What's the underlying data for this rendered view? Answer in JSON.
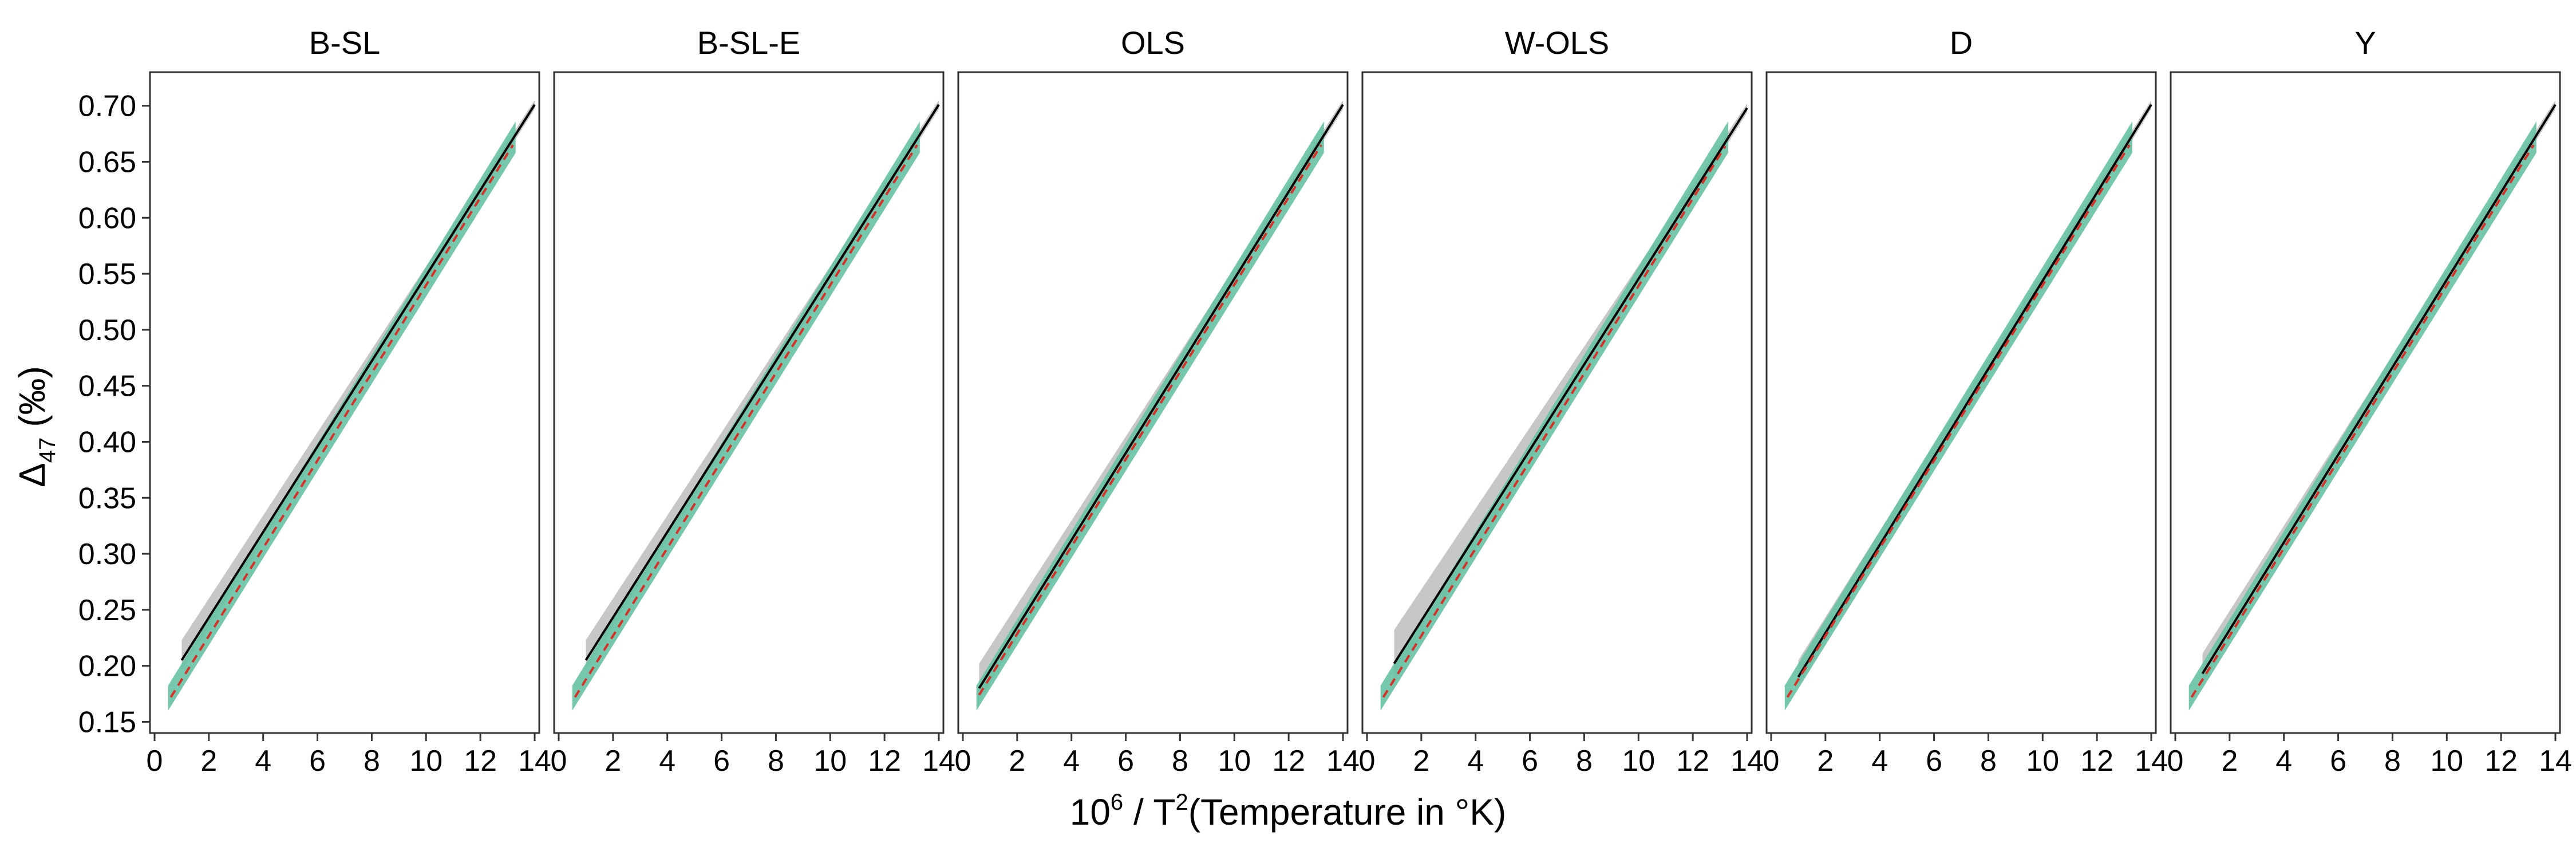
{
  "chart_data": {
    "type": "line",
    "facets": [
      "B-SL",
      "B-SL-E",
      "OLS",
      "W-OLS",
      "D",
      "Y"
    ],
    "xlim": [
      0,
      14
    ],
    "ylim": [
      0.14,
      0.73
    ],
    "x_ticks": [
      "0",
      "2",
      "4",
      "6",
      "8",
      "10",
      "12",
      "14"
    ],
    "y_ticks": [
      "0.15",
      "0.20",
      "0.25",
      "0.30",
      "0.35",
      "0.40",
      "0.45",
      "0.50",
      "0.55",
      "0.60",
      "0.65",
      "0.70"
    ],
    "y_tick_values": [
      0.15,
      0.2,
      0.25,
      0.3,
      0.35,
      0.4,
      0.45,
      0.5,
      0.55,
      0.6,
      0.65,
      0.7
    ],
    "x_tick_values": [
      0,
      2,
      4,
      6,
      8,
      10,
      12,
      14
    ],
    "ylabel_main": "Δ",
    "ylabel_sub": "47",
    "ylabel_unit": " (‰)",
    "xlabel_base": "10",
    "xlabel_sup1": "6",
    "xlabel_mid": " / T",
    "xlabel_sup2": "2",
    "xlabel_rest": "(Temperature in °K)",
    "panels": [
      {
        "name": "B-SL",
        "black_line": {
          "x": [
            1.0,
            14.0
          ],
          "y": [
            0.205,
            0.701
          ]
        },
        "black_band": [
          0.018,
          0.004
        ],
        "red_dashed": {
          "x": [
            0.6,
            13.2
          ],
          "y": [
            0.172,
            0.665
          ]
        },
        "teal_band": {
          "x": [
            0.5,
            13.3
          ],
          "y": [
            0.174,
            0.672
          ],
          "width": 0.014
        }
      },
      {
        "name": "B-SL-E",
        "black_line": {
          "x": [
            1.0,
            14.0
          ],
          "y": [
            0.205,
            0.701
          ]
        },
        "black_band": [
          0.018,
          0.004
        ],
        "red_dashed": {
          "x": [
            0.6,
            13.2
          ],
          "y": [
            0.172,
            0.665
          ]
        },
        "teal_band": {
          "x": [
            0.5,
            13.3
          ],
          "y": [
            0.174,
            0.672
          ],
          "width": 0.014
        }
      },
      {
        "name": "OLS",
        "black_line": {
          "x": [
            0.6,
            14.0
          ],
          "y": [
            0.18,
            0.701
          ]
        },
        "black_band": [
          0.022,
          0.004
        ],
        "red_dashed": {
          "x": [
            0.6,
            13.2
          ],
          "y": [
            0.174,
            0.665
          ]
        },
        "teal_band": {
          "x": [
            0.5,
            13.3
          ],
          "y": [
            0.174,
            0.672
          ],
          "width": 0.014
        }
      },
      {
        "name": "W-OLS",
        "black_line": {
          "x": [
            1.0,
            14.0
          ],
          "y": [
            0.202,
            0.698
          ]
        },
        "black_band": [
          0.03,
          0.004
        ],
        "red_dashed": {
          "x": [
            0.6,
            13.2
          ],
          "y": [
            0.172,
            0.664
          ]
        },
        "teal_band": {
          "x": [
            0.5,
            13.3
          ],
          "y": [
            0.174,
            0.672
          ],
          "width": 0.014
        }
      },
      {
        "name": "D",
        "black_line": {
          "x": [
            1.0,
            14.0
          ],
          "y": [
            0.19,
            0.701
          ]
        },
        "black_band": [
          0.015,
          0.004
        ],
        "red_dashed": {
          "x": [
            0.6,
            13.2
          ],
          "y": [
            0.172,
            0.665
          ]
        },
        "teal_band": {
          "x": [
            0.5,
            13.3
          ],
          "y": [
            0.174,
            0.672
          ],
          "width": 0.014
        }
      },
      {
        "name": "Y",
        "black_line": {
          "x": [
            1.0,
            14.0
          ],
          "y": [
            0.193,
            0.701
          ]
        },
        "black_band": [
          0.018,
          0.004
        ],
        "red_dashed": {
          "x": [
            0.6,
            13.2
          ],
          "y": [
            0.172,
            0.665
          ]
        },
        "teal_band": {
          "x": [
            0.5,
            13.3
          ],
          "y": [
            0.174,
            0.672
          ],
          "width": 0.014
        }
      }
    ],
    "colors": {
      "black_line": "#000000",
      "grey_band": "#bdbdbd",
      "teal_band": "#66c2a5",
      "red_dashed": "#d73027",
      "panel_border": "#333333"
    },
    "grid": false,
    "legend": "none"
  }
}
